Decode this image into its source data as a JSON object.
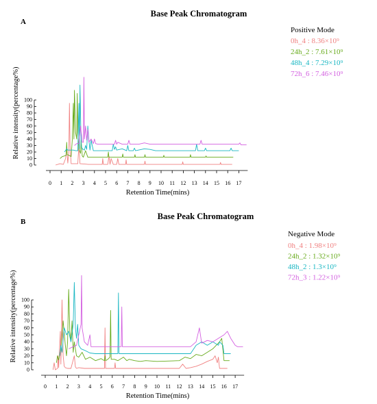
{
  "chart_data": [
    {
      "type": "line",
      "panel_letter": "A",
      "title": "Base Peak Chromatogram",
      "xlabel": "Retention Time(mins)",
      "ylabel": "Relative intensity(percentage%)",
      "x_ticks": [
        "0",
        "1",
        "2",
        "3",
        "4",
        "5",
        "6",
        "7",
        "8",
        "9",
        "10",
        "11",
        "12",
        "13",
        "14",
        "15",
        "16",
        "17"
      ],
      "y_ticks": [
        "0",
        "10",
        "20",
        "30",
        "40",
        "50",
        "60",
        "70",
        "80",
        "90",
        "100"
      ],
      "xlim": [
        0,
        17
      ],
      "legend_title": "Positive Mode",
      "legend_position": "top-right",
      "series": [
        {
          "name": "0h_4 : 8.36×10⁹",
          "color": "#f08080",
          "offset": 0,
          "x": [
            0.5,
            0.9,
            1.2,
            1.4,
            1.5,
            1.6,
            1.7,
            1.75,
            1.8,
            1.9,
            2.2,
            2.5,
            2.6,
            2.7,
            3.5,
            4.7,
            4.75,
            4.8,
            5.2,
            5.3,
            5.4,
            5.5,
            5.7,
            6.0,
            6.1,
            6.2,
            6.5,
            6.8,
            6.85,
            6.9,
            7.5,
            8.5,
            8.55,
            8.6,
            9.5,
            11.9,
            11.95,
            12.0,
            13.5,
            15.3,
            15.35,
            15.4,
            16.4
          ],
          "y": [
            0,
            2,
            1,
            10,
            25,
            3,
            22,
            95,
            30,
            2,
            2,
            2,
            32,
            2,
            1,
            1,
            10,
            1,
            1,
            14,
            1,
            10,
            1,
            1,
            10,
            1,
            1,
            1,
            8,
            1,
            1,
            1,
            6,
            1,
            1,
            1,
            5,
            1,
            1,
            1,
            4,
            1,
            1
          ]
        },
        {
          "name": "24h_2 : 7.61×10⁹",
          "color": "#66aa1a",
          "offset": 10,
          "x": [
            0.9,
            1.1,
            1.3,
            1.45,
            1.5,
            1.55,
            1.7,
            1.8,
            1.9,
            2.0,
            2.1,
            2.15,
            2.2,
            2.3,
            2.4,
            2.45,
            2.5,
            2.6,
            2.75,
            2.8,
            2.9,
            3.0,
            3.2,
            3.4,
            4.5,
            5.2,
            5.25,
            5.3,
            5.7,
            6.5,
            6.55,
            6.6,
            7.6,
            7.65,
            7.7,
            8.5,
            8.55,
            8.6,
            10.2,
            10.25,
            10.3,
            12.6,
            12.65,
            12.7,
            13.5,
            14.0,
            14.05,
            14.1,
            16.5
          ],
          "y": [
            0,
            3,
            4,
            5,
            25,
            6,
            5,
            4,
            3,
            28,
            85,
            30,
            105,
            40,
            30,
            100,
            40,
            15,
            8,
            28,
            4,
            2,
            12,
            2,
            2,
            2,
            10,
            2,
            2,
            2,
            7,
            2,
            2,
            6,
            2,
            2,
            6,
            2,
            2,
            5,
            2,
            2,
            6,
            2,
            2,
            2,
            4,
            2,
            2
          ]
        },
        {
          "name": "48h_4 : 7.29×10⁹",
          "color": "#17b6c2",
          "offset": 20,
          "x": [
            1.3,
            1.5,
            1.6,
            1.7,
            1.9,
            2.1,
            2.3,
            2.5,
            2.6,
            2.65,
            2.7,
            2.8,
            2.9,
            3.0,
            3.1,
            3.2,
            3.3,
            3.4,
            3.5,
            3.6,
            3.7,
            3.9,
            4.5,
            5.6,
            5.7,
            5.8,
            5.9,
            6.0,
            6.5,
            6.9,
            7.0,
            7.1,
            7.5,
            7.6,
            7.7,
            8.5,
            9.0,
            9.5,
            13.1,
            13.2,
            13.3,
            13.9,
            14.0,
            14.1,
            16.2,
            16.3,
            16.4,
            17.0
          ],
          "y": [
            0,
            5,
            3,
            3,
            3,
            3,
            2,
            2,
            75,
            5,
            103,
            10,
            5,
            4,
            3,
            10,
            4,
            40,
            18,
            3,
            18,
            2,
            2,
            2,
            12,
            4,
            8,
            3,
            5,
            2,
            10,
            2,
            2,
            6,
            2,
            5,
            4,
            2,
            2,
            12,
            2,
            2,
            6,
            2,
            2,
            6,
            2,
            2
          ]
        },
        {
          "name": "72h_6 : 7.46×10⁹",
          "color": "#d35fe0",
          "offset": 30,
          "x": [
            2.2,
            2.4,
            2.6,
            2.75,
            2.9,
            3.0,
            3.05,
            3.1,
            3.2,
            3.3,
            3.4,
            3.5,
            3.7,
            3.9,
            4.0,
            4.1,
            4.3,
            5.0,
            5.8,
            5.9,
            6.0,
            6.1,
            6.5,
            7.0,
            7.1,
            7.2,
            8.0,
            8.5,
            9.0,
            12.0,
            13.5,
            13.6,
            13.7,
            14.0,
            17.0,
            17.1,
            17.2,
            17.7
          ],
          "y": [
            0,
            3,
            3,
            30,
            5,
            5,
            105,
            10,
            30,
            8,
            25,
            5,
            10,
            3,
            10,
            3,
            2,
            2,
            2,
            8,
            2,
            5,
            2,
            2,
            8,
            2,
            2,
            4,
            2,
            2,
            2,
            8,
            2,
            2,
            2,
            4,
            1,
            1
          ]
        }
      ]
    },
    {
      "type": "line",
      "panel_letter": "B",
      "title": "Base Peak Chromatogram",
      "xlabel": "Retention Time(mins)",
      "ylabel": "Relative intensity(percentage%)",
      "x_ticks": [
        "0",
        "1",
        "2",
        "3",
        "4",
        "5",
        "6",
        "7",
        "8",
        "9",
        "10",
        "11",
        "12",
        "13",
        "14",
        "15",
        "16",
        "17"
      ],
      "y_ticks": [
        "0",
        "10",
        "20",
        "30",
        "40",
        "50",
        "60",
        "70",
        "80",
        "90",
        "100"
      ],
      "xlim": [
        0,
        17
      ],
      "legend_title": "Negative Mode",
      "legend_position": "top-right",
      "series": [
        {
          "name": "0h_4 : 1.98×10⁹",
          "color": "#f08080",
          "offset": 0,
          "x": [
            0.7,
            0.8,
            0.9,
            1.1,
            1.15,
            1.2,
            1.35,
            1.4,
            1.5,
            1.6,
            1.7,
            1.8,
            2.0,
            2.2,
            2.3,
            2.6,
            2.7,
            2.8,
            3.0,
            3.5,
            4.0,
            4.5,
            5.0,
            5.3,
            5.35,
            5.4,
            6.2,
            6.25,
            6.3,
            8.0,
            10.0,
            12.0,
            12.3,
            12.6,
            13.0,
            13.5,
            14.0,
            14.5,
            15.0,
            15.2,
            15.4,
            15.5,
            15.6,
            16.0,
            16.3
          ],
          "y": [
            0,
            10,
            0,
            2,
            20,
            3,
            55,
            8,
            100,
            20,
            5,
            3,
            2,
            2,
            2,
            20,
            4,
            2,
            3,
            2,
            2,
            2,
            2,
            2,
            60,
            2,
            2,
            10,
            2,
            2,
            2,
            2,
            8,
            2,
            3,
            5,
            8,
            12,
            15,
            20,
            10,
            18,
            2,
            2,
            2
          ]
        },
        {
          "name": "24h_2 : 1.32×10⁹",
          "color": "#66aa1a",
          "offset": 10,
          "x": [
            1.0,
            1.1,
            1.2,
            1.4,
            1.6,
            1.8,
            1.9,
            2.0,
            2.1,
            2.2,
            2.3,
            2.4,
            2.5,
            2.6,
            2.7,
            2.8,
            3.0,
            3.3,
            3.6,
            4.0,
            4.5,
            5.0,
            5.3,
            5.35,
            5.4,
            5.6,
            5.8,
            5.85,
            5.9,
            6.2,
            6.5,
            7.0,
            7.3,
            7.5,
            8.0,
            8.5,
            9.0,
            10.0,
            12.0,
            12.5,
            13.0,
            13.5,
            14.0,
            14.5,
            15.0,
            15.3,
            15.6,
            15.8,
            16.0,
            16.5
          ],
          "y": [
            0,
            10,
            4,
            20,
            60,
            25,
            10,
            30,
            105,
            45,
            30,
            60,
            15,
            30,
            20,
            10,
            8,
            15,
            5,
            8,
            3,
            6,
            3,
            10,
            3,
            5,
            8,
            75,
            5,
            5,
            3,
            8,
            3,
            5,
            3,
            2,
            3,
            2,
            3,
            8,
            6,
            12,
            10,
            15,
            20,
            25,
            30,
            35,
            3,
            3
          ]
        },
        {
          "name": "48h_2 : 1.3×10⁹",
          "color": "#17b6c2",
          "offset": 20,
          "x": [
            1.3,
            1.4,
            1.5,
            1.7,
            1.9,
            2.1,
            2.3,
            2.5,
            2.6,
            2.7,
            2.8,
            2.9,
            3.0,
            3.2,
            3.5,
            4.0,
            4.5,
            5.0,
            5.5,
            6.0,
            6.5,
            6.55,
            6.6,
            7.0,
            7.5,
            8.0,
            8.5,
            9.0,
            10.0,
            12.0,
            13.0,
            13.5,
            14.0,
            14.5,
            15.0,
            15.5,
            15.6,
            15.9,
            16.0,
            16.3,
            16.6
          ],
          "y": [
            0,
            15,
            5,
            40,
            30,
            35,
            20,
            45,
            105,
            40,
            25,
            45,
            15,
            10,
            8,
            4,
            3,
            3,
            3,
            3,
            3,
            90,
            3,
            3,
            3,
            3,
            3,
            3,
            3,
            3,
            3,
            15,
            20,
            15,
            20,
            15,
            20,
            15,
            3,
            3,
            3
          ]
        },
        {
          "name": "72h_3 : 1.22×10⁹",
          "color": "#d35fe0",
          "offset": 30,
          "x": [
            2.1,
            2.5,
            2.8,
            3.0,
            3.2,
            3.25,
            3.3,
            3.5,
            3.8,
            4.0,
            4.1,
            4.3,
            5.0,
            5.5,
            6.0,
            6.5,
            6.8,
            6.85,
            6.9,
            7.5,
            8.0,
            8.5,
            9.0,
            10.0,
            12.0,
            13.0,
            13.5,
            13.8,
            14.0,
            14.5,
            15.0,
            15.5,
            16.0,
            16.3,
            16.6,
            17.0,
            17.2,
            17.7
          ],
          "y": [
            0,
            3,
            5,
            20,
            35,
            105,
            30,
            10,
            5,
            20,
            3,
            3,
            3,
            3,
            3,
            3,
            3,
            60,
            3,
            3,
            3,
            3,
            3,
            3,
            3,
            3,
            10,
            30,
            8,
            12,
            10,
            15,
            20,
            25,
            15,
            5,
            3,
            3
          ]
        }
      ]
    }
  ]
}
